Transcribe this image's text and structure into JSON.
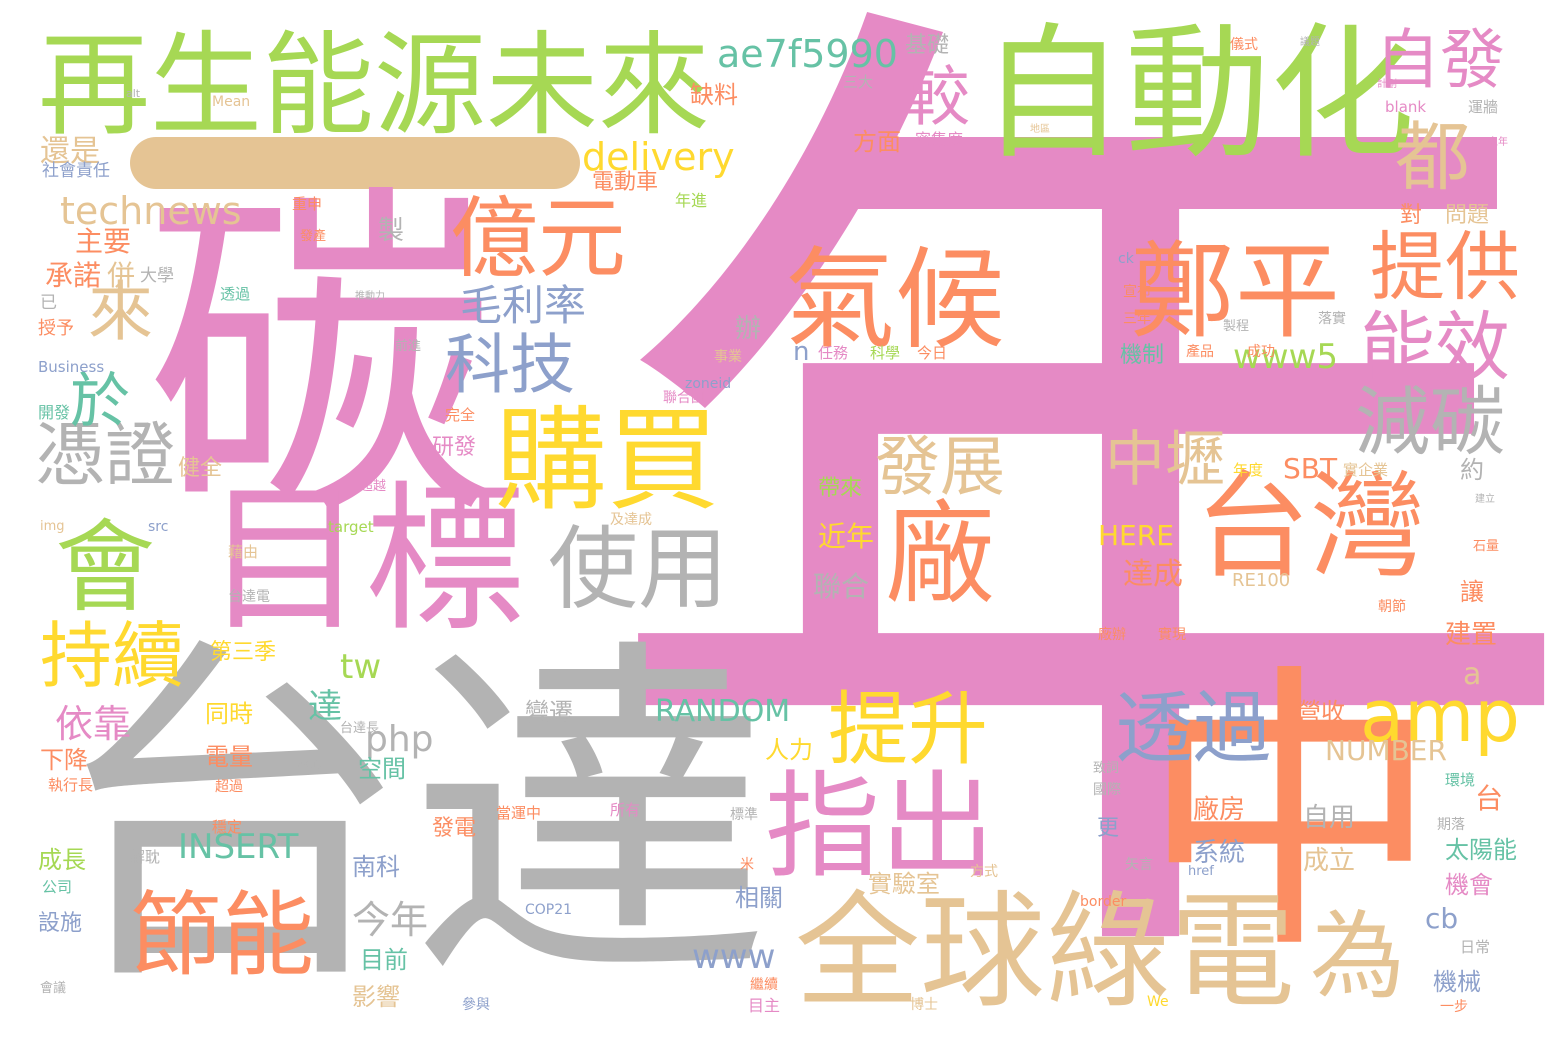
{
  "palette": {
    "pink": "#e58ac5",
    "green": "#a6d854",
    "orange": "#fc8d62",
    "gray": "#b3b3b3",
    "tan": "#e5c494",
    "yellow": "#ffd92f",
    "teal": "#66c2a5",
    "blue": "#8da0cb"
  },
  "cloud": {
    "words": [
      "年",
      "台達",
      "碳",
      "中",
      "自動化",
      "再生能源未來",
      "目標",
      "全球綠電",
      "指出",
      "購買",
      "氣候",
      "鄭平",
      "台灣",
      "廠",
      "會",
      "億元",
      "節能",
      "使用",
      "持續",
      "提升",
      "透過",
      "amp",
      "為",
      "提供",
      "能效",
      "減碳",
      "科技",
      "憑證",
      "發展",
      "中壢",
      "自發",
      "都",
      "較",
      "來",
      "於",
      "毛利率",
      "依靠",
      "technews",
      "delivery",
      "ae7f5990",
      "www5",
      "RANDOM",
      "INSERT",
      "php",
      "tw",
      "www",
      "HERE",
      "SBT",
      "NUMBER",
      "RE100",
      "還是",
      "社會責任",
      "主要",
      "承諾",
      "併",
      "大學",
      "已",
      "授予",
      "開發",
      "Business",
      "img",
      "src",
      "target",
      "健全",
      "研發",
      "完全",
      "Mean",
      "alt",
      "缺料",
      "基礎",
      "三大",
      "方面",
      "密集度",
      "電動車",
      "年進",
      "對",
      "問題",
      "製",
      "重申",
      "發產",
      "透過",
      "推動力",
      "前進",
      "成功",
      "落實",
      "機制",
      "產品",
      "任務",
      "科學",
      "今日",
      "事業",
      "聯合國",
      "n",
      "zoneid",
      "辦",
      "帶來",
      "近年",
      "聯合",
      "達成",
      "廠房",
      "系統",
      "自用",
      "成立",
      "實驗室",
      "相關",
      "今年",
      "目前",
      "影響",
      "南科",
      "空間",
      "電量",
      "同時",
      "下降",
      "執行長",
      "成長",
      "公司",
      "設施",
      "會議",
      "第三季",
      "台達電",
      "藉由",
      "及達成",
      "變遷",
      "人力",
      "營收",
      "建置",
      "太陽能",
      "機會",
      "台",
      "約",
      "實企業",
      "年度",
      "期落",
      "環境",
      "機械",
      "cb",
      "日常",
      "一步",
      "目主",
      "博士",
      "參與",
      "We",
      "border",
      "href",
      "矢言",
      "國際",
      "更",
      "致詞",
      "方式",
      "米",
      "標準",
      "當運中",
      "所有",
      "發電",
      "解耽",
      "穩定",
      "達",
      "a",
      "blank",
      "運牆",
      "宣布",
      "三年",
      "ck",
      "製程",
      "讓",
      "實現",
      "廠辦",
      "石量",
      "朝節",
      "COP21",
      "核心",
      "超過",
      "超越",
      "台達長",
      "繼續",
      "建立",
      "之年",
      "儀式",
      "議題",
      "計劃",
      "地區"
    ]
  }
}
